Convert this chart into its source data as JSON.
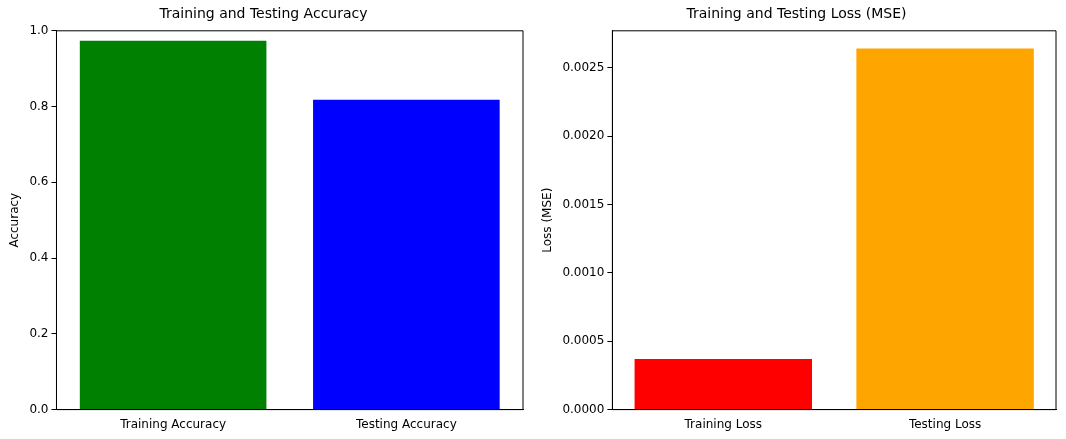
{
  "chart_data": [
    {
      "type": "bar",
      "title": "Training and Testing Accuracy",
      "ylabel": "Accuracy",
      "categories": [
        "Training Accuracy",
        "Testing Accuracy"
      ],
      "values": [
        0.974,
        0.818
      ],
      "colors": [
        "#008000",
        "#0000ff"
      ],
      "ylim": [
        0,
        1
      ],
      "yticks": [
        {
          "value": 0,
          "label": "0.0"
        },
        {
          "value": 0.2,
          "label": "0.2"
        },
        {
          "value": 0.4,
          "label": "0.4"
        },
        {
          "value": 0.6,
          "label": "0.6"
        },
        {
          "value": 0.8,
          "label": "0.8"
        },
        {
          "value": 1,
          "label": "1.0"
        }
      ],
      "grid": false,
      "legend": false
    },
    {
      "type": "bar",
      "title": "Training and Testing Loss (MSE)",
      "ylabel": "Loss (MSE)",
      "categories": [
        "Training Loss",
        "Testing Loss"
      ],
      "values": [
        0.00037,
        0.00264
      ],
      "colors": [
        "#ff0000",
        "#ffa500"
      ],
      "ylim": [
        0,
        0.00277
      ],
      "yticks": [
        {
          "value": 0,
          "label": "0.0000"
        },
        {
          "value": 0.0005,
          "label": "0.0005"
        },
        {
          "value": 0.001,
          "label": "0.0010"
        },
        {
          "value": 0.0015,
          "label": "0.0015"
        },
        {
          "value": 0.002,
          "label": "0.0020"
        },
        {
          "value": 0.0025,
          "label": "0.0025"
        }
      ],
      "grid": false,
      "legend": false
    }
  ]
}
